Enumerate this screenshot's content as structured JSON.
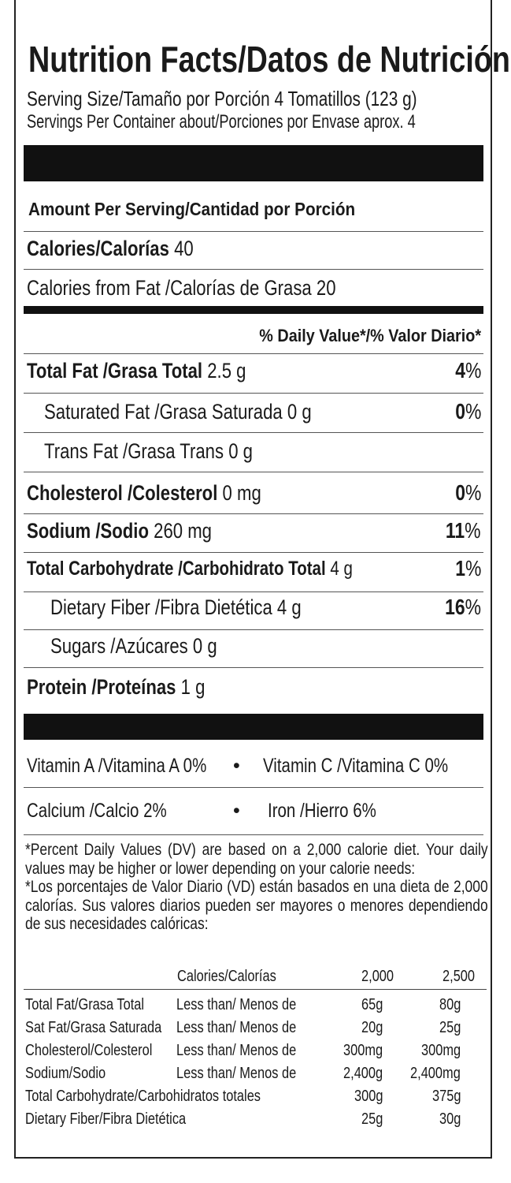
{
  "title": "Nutrition Facts/Datos de Nutrición",
  "serving_size": "Serving Size/Tamaño por Porción 4 Tomatillos (123 g)",
  "servings_per_container": "Servings Per Container about/Porciones por Envase aprox. 4",
  "amount_per_serving": "Amount Per Serving/Cantidad por Porción",
  "calories": {
    "label": "Calories/Calorías",
    "value": "40"
  },
  "calories_from_fat": "Calories from Fat /Calorías de Grasa 20",
  "daily_value_header": "% Daily Value*/% Valor Diario*",
  "nutrients": [
    {
      "label": "Total Fat /Grasa Total",
      "amount": "2.5 g",
      "dv": "4",
      "bold": true,
      "indent": false
    },
    {
      "label": "Saturated Fat /Grasa Saturada",
      "amount": "0 g",
      "dv": "0",
      "bold": false,
      "indent": true
    },
    {
      "label": "Trans Fat /Grasa Trans",
      "amount": "0 g",
      "dv": "",
      "bold": false,
      "indent": true
    },
    {
      "label": "Cholesterol /Colesterol",
      "amount": "0 mg",
      "dv": "0",
      "bold": true,
      "indent": false
    },
    {
      "label": "Sodium /Sodio",
      "amount": "260 mg",
      "dv": "11",
      "bold": true,
      "indent": false
    },
    {
      "label": "Total Carbohydrate /Carbohidrato Total",
      "amount": "4 g",
      "dv": "1",
      "bold": true,
      "indent": false
    },
    {
      "label": "Dietary Fiber /Fibra Dietética",
      "amount": "4 g",
      "dv": "16",
      "bold": false,
      "indent": true
    },
    {
      "label": "Sugars /Azúcares",
      "amount": "0 g",
      "dv": "",
      "bold": false,
      "indent": true
    },
    {
      "label": "Protein /Proteínas",
      "amount": "1 g",
      "dv": "",
      "bold": true,
      "indent": false
    }
  ],
  "percent_sign": "%",
  "vitamins": {
    "vitamin_a": "Vitamin A /Vitamina A  0%",
    "vitamin_c": "Vitamin C /Vitamina C 0%",
    "calcium": "Calcium /Calcio  2%",
    "iron": "Iron /Hierro 6%",
    "bullet": "•"
  },
  "footnote_en": "*Percent Daily Values (DV) are based on a 2,000 calorie diet. Your daily values may be higher or lower depending on your calorie needs:",
  "footnote_es": "*Los porcentajes de Valor Diario (VD) están basados en una dieta de 2,000 calorías. Sus valores diarios pueden ser mayores o menores dependiendo de sus necesidades calóricas:",
  "reference_table": {
    "header": [
      "Calories/Calorías",
      "2,000",
      "2,500"
    ],
    "rows": [
      [
        "Total Fat/Grasa Total",
        "Less than/ Menos de",
        "65g",
        "80g"
      ],
      [
        " Sat Fat/Grasa Saturada",
        "Less than/ Menos de",
        "20g",
        "25g"
      ],
      [
        "Cholesterol/Colesterol",
        "Less than/ Menos de",
        "300mg",
        "300mg"
      ],
      [
        "Sodium/Sodio",
        "Less than/ Menos de",
        "2,400g",
        "2,400mg"
      ],
      [
        "Total Carbohydrate/Carbohidratos totales",
        "",
        "300g",
        "375g"
      ],
      [
        " Dietary Fiber/Fibra Dietética",
        "",
        "25g",
        "30g"
      ]
    ]
  }
}
